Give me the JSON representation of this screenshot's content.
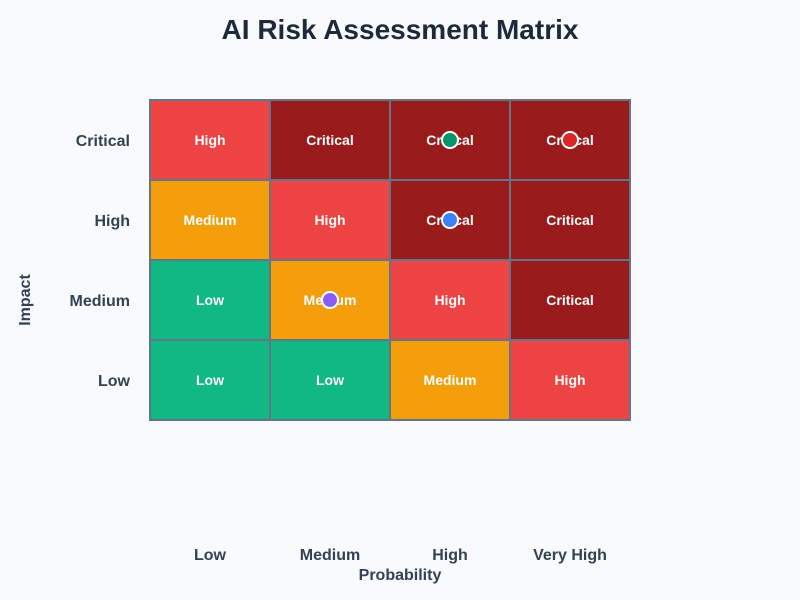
{
  "chart_data": {
    "type": "heatmap",
    "title": "AI Risk Assessment Matrix",
    "xlabel": "Probability",
    "ylabel": "Impact",
    "x_categories": [
      "Low",
      "Medium",
      "High",
      "Very High"
    ],
    "y_categories": [
      "Critical",
      "High",
      "Medium",
      "Low"
    ],
    "cells": [
      [
        "High",
        "Critical",
        "Critical",
        "Critical"
      ],
      [
        "Medium",
        "High",
        "Critical",
        "Critical"
      ],
      [
        "Low",
        "Medium",
        "High",
        "Critical"
      ],
      [
        "Low",
        "Low",
        "Medium",
        "High"
      ]
    ],
    "level_colors": {
      "Low": "#10b981",
      "Medium": "#f59e0b",
      "High": "#ef4444",
      "Critical": "#991b1b"
    },
    "markers": [
      {
        "probability": "High",
        "impact": "Critical",
        "color": "#059669"
      },
      {
        "probability": "Very High",
        "impact": "Critical",
        "color": "#dc2626"
      },
      {
        "probability": "High",
        "impact": "High",
        "color": "#3b82f6"
      },
      {
        "probability": "Medium",
        "impact": "Medium",
        "color": "#8b5cf6"
      }
    ]
  }
}
